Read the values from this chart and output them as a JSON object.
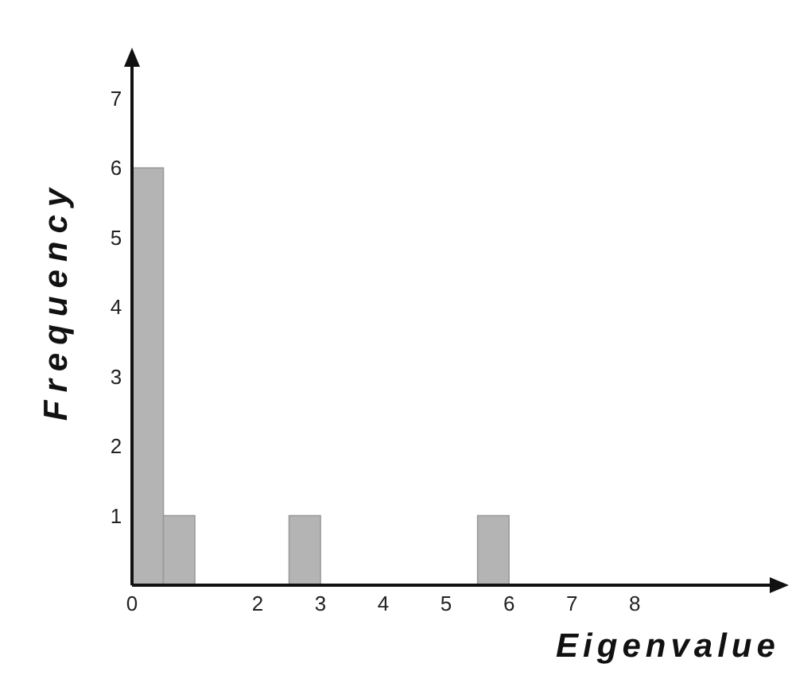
{
  "chart_data": {
    "type": "histogram",
    "xlabel": "Eigenvalue",
    "ylabel": "Frequency",
    "bins": [
      0,
      0.5,
      1,
      1.5,
      2,
      2.5,
      3,
      3.5,
      4,
      4.5,
      5,
      5.5,
      6
    ],
    "values": [
      6,
      1,
      0,
      0,
      0,
      1,
      0,
      0,
      0,
      0,
      0,
      1
    ],
    "color": "#b4b4b4",
    "xlim": [
      0,
      10.2
    ],
    "xticks": [
      0,
      2,
      3,
      4,
      5,
      6,
      7,
      8
    ],
    "ylim": [
      0,
      7.5
    ],
    "yticks": [
      1,
      2,
      3,
      4,
      5,
      6,
      7
    ],
    "grid": false
  }
}
